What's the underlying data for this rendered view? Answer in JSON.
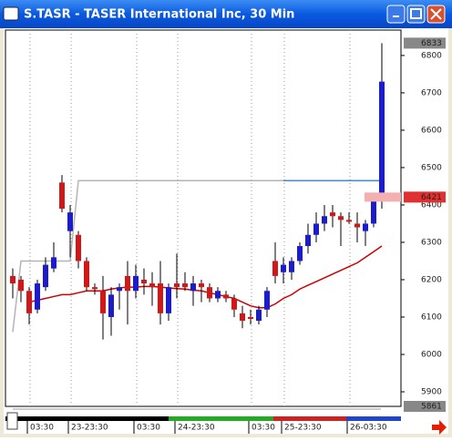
{
  "chart_data": {
    "type": "candlestick",
    "title": "S.TASR - TASER International Inc, 30 Min",
    "categories": [
      null,
      "03:30",
      null,
      null,
      null,
      null,
      "23-23:30",
      null,
      null,
      null,
      null,
      null,
      null,
      null,
      "03:30",
      null,
      null,
      null,
      null,
      "24-23:30",
      null,
      null,
      null,
      null,
      null,
      null,
      null,
      null,
      "03:30",
      null,
      null,
      null,
      "25-23:30",
      null,
      null,
      null,
      null,
      null,
      null,
      null,
      "26-03:30",
      null,
      null,
      null,
      null,
      null
    ],
    "open": [
      6210,
      6200,
      6170,
      6120,
      6180,
      6230,
      6460,
      6330,
      6320,
      6250,
      6180,
      6170,
      6100,
      6170,
      6210,
      6170,
      6200,
      6190,
      6190,
      6110,
      6190,
      6190,
      6170,
      6190,
      6180,
      6150,
      6160,
      6150,
      6110,
      6100,
      6090,
      6120,
      6250,
      6220,
      6220,
      6250,
      6290,
      6320,
      6350,
      6380,
      6370,
      6360,
      6350,
      6330,
      6350,
      6425
    ],
    "high": [
      6230,
      6210,
      6180,
      6200,
      6260,
      6300,
      6480,
      6400,
      6330,
      6260,
      6190,
      6210,
      6180,
      6190,
      6250,
      6240,
      6230,
      6220,
      6250,
      6190,
      6270,
      6220,
      6210,
      6200,
      6190,
      6180,
      6170,
      6160,
      6130,
      6120,
      6130,
      6180,
      6300,
      6260,
      6260,
      6300,
      6350,
      6380,
      6400,
      6400,
      6380,
      6380,
      6380,
      6360,
      6430,
      6833
    ],
    "low": [
      6150,
      6140,
      6080,
      6110,
      6170,
      6220,
      6380,
      6260,
      6230,
      6170,
      6160,
      6040,
      6050,
      6120,
      6080,
      6150,
      6160,
      6130,
      6080,
      6090,
      6150,
      6170,
      6130,
      6140,
      6140,
      6140,
      6140,
      6100,
      6070,
      6080,
      6080,
      6100,
      6190,
      6190,
      6200,
      6240,
      6270,
      6300,
      6330,
      6340,
      6290,
      6350,
      6300,
      6290,
      6340,
      6390
    ],
    "close": [
      6190,
      6170,
      6110,
      6190,
      6240,
      6260,
      6390,
      6380,
      6250,
      6180,
      6175,
      6110,
      6160,
      6180,
      6170,
      6210,
      6190,
      6180,
      6110,
      6180,
      6180,
      6180,
      6190,
      6180,
      6150,
      6170,
      6150,
      6120,
      6090,
      6095,
      6120,
      6170,
      6210,
      6240,
      6250,
      6290,
      6320,
      6350,
      6370,
      6370,
      6360,
      6355,
      6340,
      6350,
      6420,
      6730
    ],
    "up_color": "#1c1cc8",
    "down_color": "#d01818",
    "lines": [
      {
        "color": "#cc0000",
        "values": [
          null,
          null,
          6140,
          6145,
          6150,
          6155,
          6160,
          6160,
          6165,
          6170,
          6170,
          6170,
          6175,
          6178,
          6180,
          6180,
          6182,
          6182,
          6180,
          6178,
          6176,
          6175,
          6172,
          6170,
          6165,
          6160,
          6155,
          6150,
          6140,
          6130,
          6125,
          6125,
          6135,
          6150,
          6160,
          6175,
          6185,
          6195,
          6205,
          6215,
          6225,
          6235,
          6245,
          6260,
          6275,
          6290
        ]
      },
      {
        "color": "#b4b4b4",
        "values": [
          6060,
          6250,
          6250,
          6250,
          6250,
          6250,
          6250,
          6250,
          6465,
          6465,
          6465,
          6465,
          6465,
          6465,
          6465,
          6465,
          6465,
          6465,
          6465,
          6465,
          6465,
          6465,
          6465,
          6465,
          6465,
          6465,
          6465,
          6465,
          6465,
          6465,
          6465,
          6465,
          6465,
          6465,
          null,
          null,
          null,
          null,
          null,
          null,
          null,
          null,
          null,
          null,
          null,
          null
        ]
      },
      {
        "color": "#3a8ee6",
        "values": [
          null,
          null,
          null,
          null,
          null,
          null,
          null,
          null,
          null,
          null,
          null,
          null,
          null,
          null,
          null,
          null,
          null,
          null,
          null,
          null,
          null,
          null,
          null,
          null,
          null,
          null,
          null,
          null,
          null,
          null,
          null,
          null,
          null,
          6465,
          6465,
          6465,
          6465,
          6465,
          6465,
          6465,
          6465,
          6465,
          6465,
          6465,
          6465,
          6465
        ]
      }
    ],
    "ylim": [
      5861,
      6868
    ],
    "yticks": [
      5900,
      6000,
      6100,
      6200,
      6300,
      6400,
      6500,
      6600,
      6700,
      6800
    ],
    "price_markers": [
      6833,
      6421,
      5861
    ]
  }
}
